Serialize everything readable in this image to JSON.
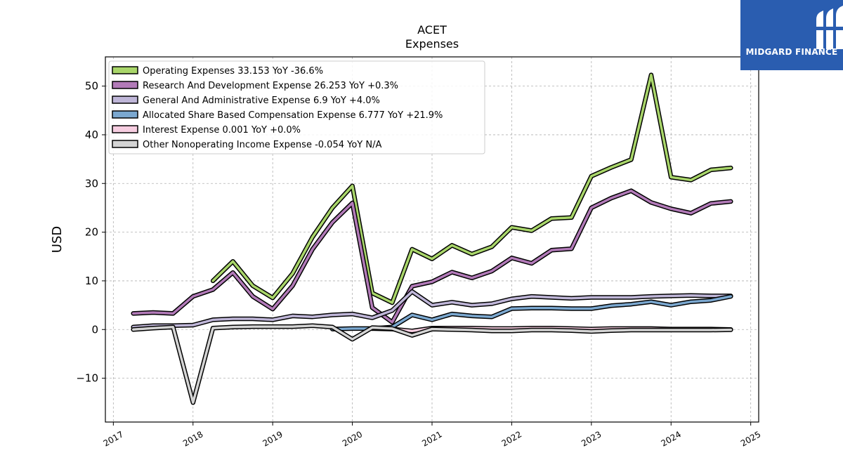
{
  "brand": {
    "name": "MIDGARD FINANCE",
    "bg_color": "#2a5db0"
  },
  "chart_data": {
    "type": "line",
    "title": "ACET",
    "subtitle": "Expenses",
    "ylabel": "USD",
    "xlabel": "",
    "xlim": [
      2016.9,
      2025.1
    ],
    "ylim": [
      -19,
      56
    ],
    "x_ticks": [
      2017,
      2018,
      2019,
      2020,
      2021,
      2022,
      2023,
      2024,
      2025
    ],
    "y_ticks": [
      -10,
      0,
      10,
      20,
      30,
      40,
      50
    ],
    "grid": true,
    "legend_position": "top-left",
    "series": [
      {
        "name": "Operating Expenses",
        "legend_label": "Operating Expenses  33.153 YoY -36.6%",
        "color": "#a9d66a",
        "points": [
          [
            2018.25,
            10.0
          ],
          [
            2018.5,
            14.0
          ],
          [
            2018.75,
            9.0
          ],
          [
            2019.0,
            6.5
          ],
          [
            2019.25,
            11.5
          ],
          [
            2019.5,
            19.0
          ],
          [
            2019.75,
            25.0
          ],
          [
            2020.0,
            29.5
          ],
          [
            2020.25,
            7.5
          ],
          [
            2020.5,
            5.5
          ],
          [
            2020.75,
            16.5
          ],
          [
            2021.0,
            14.5
          ],
          [
            2021.25,
            17.3
          ],
          [
            2021.5,
            15.5
          ],
          [
            2021.75,
            17.0
          ],
          [
            2022.0,
            21.0
          ],
          [
            2022.25,
            20.3
          ],
          [
            2022.5,
            22.8
          ],
          [
            2022.75,
            23.0
          ],
          [
            2023.0,
            31.5
          ],
          [
            2023.25,
            33.3
          ],
          [
            2023.5,
            34.9
          ],
          [
            2023.75,
            52.3
          ],
          [
            2024.0,
            31.3
          ],
          [
            2024.25,
            30.7
          ],
          [
            2024.5,
            32.8
          ],
          [
            2024.75,
            33.2
          ]
        ]
      },
      {
        "name": "Research And Development Expense",
        "legend_label": "Research And Development Expense  26.253 YoY +0.3%",
        "color": "#b27ab8",
        "points": [
          [
            2017.25,
            3.3
          ],
          [
            2017.5,
            3.5
          ],
          [
            2017.75,
            3.3
          ],
          [
            2018.0,
            6.8
          ],
          [
            2018.25,
            8.2
          ],
          [
            2018.5,
            11.7
          ],
          [
            2018.75,
            6.8
          ],
          [
            2019.0,
            4.2
          ],
          [
            2019.25,
            9.0
          ],
          [
            2019.5,
            16.5
          ],
          [
            2019.75,
            22.0
          ],
          [
            2020.0,
            26.0
          ],
          [
            2020.25,
            4.5
          ],
          [
            2020.5,
            1.5
          ],
          [
            2020.75,
            8.9
          ],
          [
            2021.0,
            9.8
          ],
          [
            2021.25,
            11.8
          ],
          [
            2021.5,
            10.6
          ],
          [
            2021.75,
            12.0
          ],
          [
            2022.0,
            14.7
          ],
          [
            2022.25,
            13.6
          ],
          [
            2022.5,
            16.3
          ],
          [
            2022.75,
            16.6
          ],
          [
            2023.0,
            25.0
          ],
          [
            2023.25,
            27.0
          ],
          [
            2023.5,
            28.5
          ],
          [
            2023.75,
            26.1
          ],
          [
            2024.0,
            24.8
          ],
          [
            2024.25,
            23.9
          ],
          [
            2024.5,
            25.9
          ],
          [
            2024.75,
            26.3
          ]
        ]
      },
      {
        "name": "General And Administrative Expense",
        "legend_label": "General And Administrative Expense  6.9 YoY +4.0%",
        "color": "#bfb6d8",
        "points": [
          [
            2017.25,
            0.5
          ],
          [
            2017.5,
            0.8
          ],
          [
            2017.75,
            0.8
          ],
          [
            2018.0,
            0.9
          ],
          [
            2018.25,
            2.0
          ],
          [
            2018.5,
            2.2
          ],
          [
            2018.75,
            2.2
          ],
          [
            2019.0,
            2.0
          ],
          [
            2019.25,
            2.8
          ],
          [
            2019.5,
            2.6
          ],
          [
            2019.75,
            3.0
          ],
          [
            2020.0,
            3.2
          ],
          [
            2020.25,
            2.4
          ],
          [
            2020.5,
            3.9
          ],
          [
            2020.75,
            7.8
          ],
          [
            2021.0,
            5.0
          ],
          [
            2021.25,
            5.6
          ],
          [
            2021.5,
            5.0
          ],
          [
            2021.75,
            5.3
          ],
          [
            2022.0,
            6.3
          ],
          [
            2022.25,
            6.8
          ],
          [
            2022.5,
            6.6
          ],
          [
            2022.75,
            6.4
          ],
          [
            2023.0,
            6.6
          ],
          [
            2023.25,
            6.6
          ],
          [
            2023.5,
            6.6
          ],
          [
            2023.75,
            6.8
          ],
          [
            2024.0,
            6.9
          ],
          [
            2024.25,
            7.0
          ],
          [
            2024.5,
            6.9
          ],
          [
            2024.75,
            6.9
          ]
        ]
      },
      {
        "name": "Allocated Share Based Compensation Expense",
        "legend_label": "Allocated Share Based Compensation Expense  6.777 YoY +21.9%",
        "color": "#7ba8d0",
        "points": [
          [
            2019.75,
            0.1
          ],
          [
            2020.0,
            0.2
          ],
          [
            2020.25,
            0.2
          ],
          [
            2020.5,
            0.5
          ],
          [
            2020.75,
            3.0
          ],
          [
            2021.0,
            2.0
          ],
          [
            2021.25,
            3.2
          ],
          [
            2021.5,
            2.8
          ],
          [
            2021.75,
            2.6
          ],
          [
            2022.0,
            4.3
          ],
          [
            2022.25,
            4.4
          ],
          [
            2022.5,
            4.4
          ],
          [
            2022.75,
            4.3
          ],
          [
            2023.0,
            4.3
          ],
          [
            2023.25,
            4.9
          ],
          [
            2023.5,
            5.2
          ],
          [
            2023.75,
            5.7
          ],
          [
            2024.0,
            5.0
          ],
          [
            2024.25,
            5.7
          ],
          [
            2024.5,
            6.0
          ],
          [
            2024.75,
            6.8
          ]
        ]
      },
      {
        "name": "Interest Expense",
        "legend_label": "Interest Expense  0.001 YoY +0.0%",
        "color": "#f6cde0",
        "points": [
          [
            2020.25,
            0.2
          ],
          [
            2020.5,
            0.1
          ],
          [
            2020.75,
            -0.3
          ],
          [
            2021.0,
            0.3
          ],
          [
            2021.25,
            0.3
          ],
          [
            2021.5,
            0.3
          ],
          [
            2021.75,
            0.2
          ],
          [
            2022.0,
            0.2
          ],
          [
            2022.25,
            0.3
          ],
          [
            2022.5,
            0.3
          ],
          [
            2022.75,
            0.2
          ],
          [
            2023.0,
            0.1
          ],
          [
            2023.25,
            0.2
          ],
          [
            2023.5,
            0.2
          ],
          [
            2023.75,
            0.2
          ],
          [
            2024.0,
            0.1
          ],
          [
            2024.25,
            0.1
          ],
          [
            2024.5,
            0.1
          ],
          [
            2024.75,
            0.0
          ]
        ]
      },
      {
        "name": "Other Nonoperating Income Expense",
        "legend_label": "Other Nonoperating Income Expense  -0.054 YoY N/A",
        "color": "#d4d4d4",
        "points": [
          [
            2017.25,
            0.0
          ],
          [
            2017.5,
            0.3
          ],
          [
            2017.75,
            0.5
          ],
          [
            2018.0,
            -15.0
          ],
          [
            2018.25,
            0.3
          ],
          [
            2018.5,
            0.5
          ],
          [
            2018.75,
            0.6
          ],
          [
            2019.0,
            0.6
          ],
          [
            2019.25,
            0.6
          ],
          [
            2019.5,
            0.8
          ],
          [
            2019.75,
            0.5
          ],
          [
            2020.0,
            -2.0
          ],
          [
            2020.25,
            0.4
          ],
          [
            2020.5,
            0.2
          ],
          [
            2020.75,
            -1.2
          ],
          [
            2021.0,
            0.1
          ],
          [
            2021.25,
            0.0
          ],
          [
            2021.5,
            -0.1
          ],
          [
            2021.75,
            -0.3
          ],
          [
            2022.0,
            -0.3
          ],
          [
            2022.25,
            -0.1
          ],
          [
            2022.5,
            -0.1
          ],
          [
            2022.75,
            -0.2
          ],
          [
            2023.0,
            -0.4
          ],
          [
            2023.25,
            -0.2
          ],
          [
            2023.5,
            -0.1
          ],
          [
            2023.75,
            -0.1
          ],
          [
            2024.0,
            -0.1
          ],
          [
            2024.25,
            -0.1
          ],
          [
            2024.5,
            -0.1
          ],
          [
            2024.75,
            -0.05
          ]
        ]
      }
    ]
  }
}
